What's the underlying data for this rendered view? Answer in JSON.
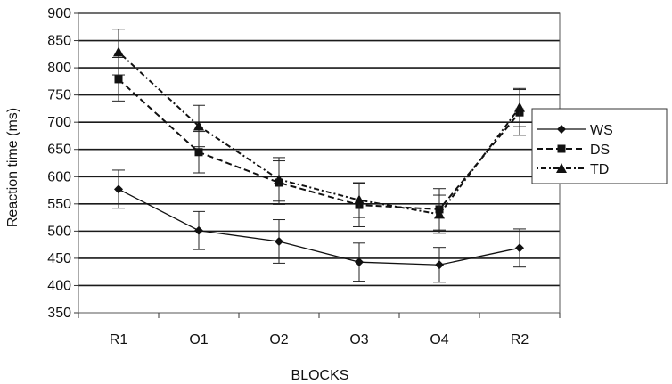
{
  "chart_data": {
    "type": "line",
    "categories": [
      "R1",
      "O1",
      "O2",
      "O3",
      "O4",
      "R2"
    ],
    "ylabel": "Reaction time (ms)",
    "xlabel": "BLOCKS",
    "ylim": [
      350,
      900
    ],
    "yticks": [
      350,
      400,
      450,
      500,
      550,
      600,
      650,
      700,
      750,
      800,
      850,
      900
    ],
    "grid": true,
    "legend_position": "right",
    "series": [
      {
        "name": "WS",
        "marker": "diamond",
        "dash": "solid",
        "values": [
          577,
          501,
          481,
          443,
          438,
          469
        ],
        "errors": [
          35,
          35,
          40,
          35,
          32,
          35
        ]
      },
      {
        "name": "DS",
        "marker": "square",
        "dash": "dashed",
        "values": [
          779,
          645,
          589,
          548,
          540,
          718
        ],
        "errors": [
          40,
          38,
          40,
          40,
          38,
          42
        ]
      },
      {
        "name": "TD",
        "marker": "triangle",
        "dash": "dashdot",
        "values": [
          829,
          693,
          595,
          557,
          531,
          727
        ],
        "errors": [
          42,
          38,
          40,
          32,
          35,
          35
        ]
      }
    ]
  }
}
